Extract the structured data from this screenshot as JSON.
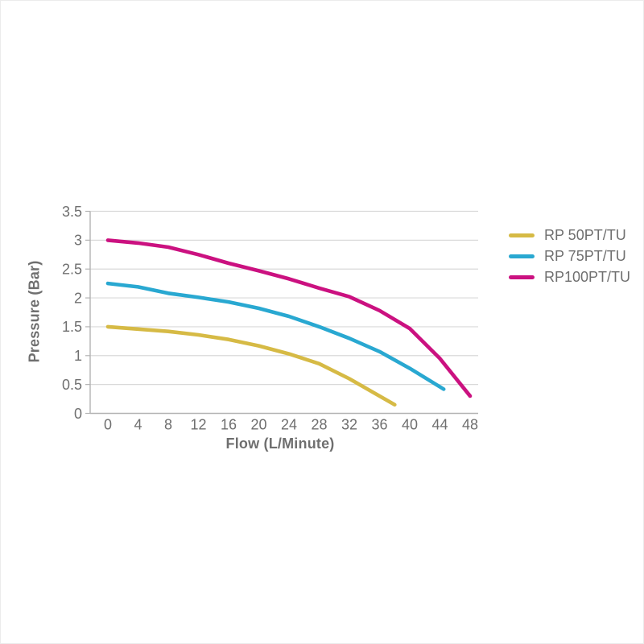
{
  "chart_data": {
    "type": "line",
    "title": "",
    "xlabel": "Flow (L/Minute)",
    "ylabel": "Pressure (Bar)",
    "x_ticks": [
      0,
      4,
      8,
      12,
      16,
      20,
      24,
      28,
      32,
      36,
      40,
      44,
      48
    ],
    "y_ticks": [
      0,
      0.5,
      1,
      1.5,
      2,
      2.5,
      3,
      3.5
    ],
    "xlim": [
      0,
      48
    ],
    "ylim": [
      0,
      3.5
    ],
    "grid": "horizontal",
    "legend_position": "right",
    "series": [
      {
        "name": "RP 50PT/TU",
        "color": "#d6ba45",
        "x": [
          0,
          4,
          8,
          12,
          16,
          20,
          24,
          28,
          32,
          36,
          38
        ],
        "y": [
          1.5,
          1.46,
          1.42,
          1.36,
          1.28,
          1.17,
          1.03,
          0.86,
          0.6,
          0.3,
          0.15
        ]
      },
      {
        "name": "RP 75PT/TU",
        "color": "#29a8d1",
        "x": [
          0,
          4,
          8,
          12,
          16,
          20,
          24,
          28,
          32,
          36,
          40,
          44.5
        ],
        "y": [
          2.25,
          2.19,
          2.08,
          2.01,
          1.93,
          1.82,
          1.68,
          1.5,
          1.3,
          1.07,
          0.78,
          0.42
        ]
      },
      {
        "name": "RP100PT/TU",
        "color": "#cb1180",
        "x": [
          0,
          4,
          8,
          12,
          16,
          20,
          24,
          28,
          32,
          36,
          40,
          44,
          48
        ],
        "y": [
          3.0,
          2.95,
          2.88,
          2.75,
          2.6,
          2.47,
          2.33,
          2.17,
          2.02,
          1.78,
          1.47,
          0.95,
          0.3
        ]
      }
    ]
  },
  "colors": {
    "grid": "#d9d9d9",
    "axis": "#b3b3b3",
    "tick_text": "#6f6f6f"
  }
}
